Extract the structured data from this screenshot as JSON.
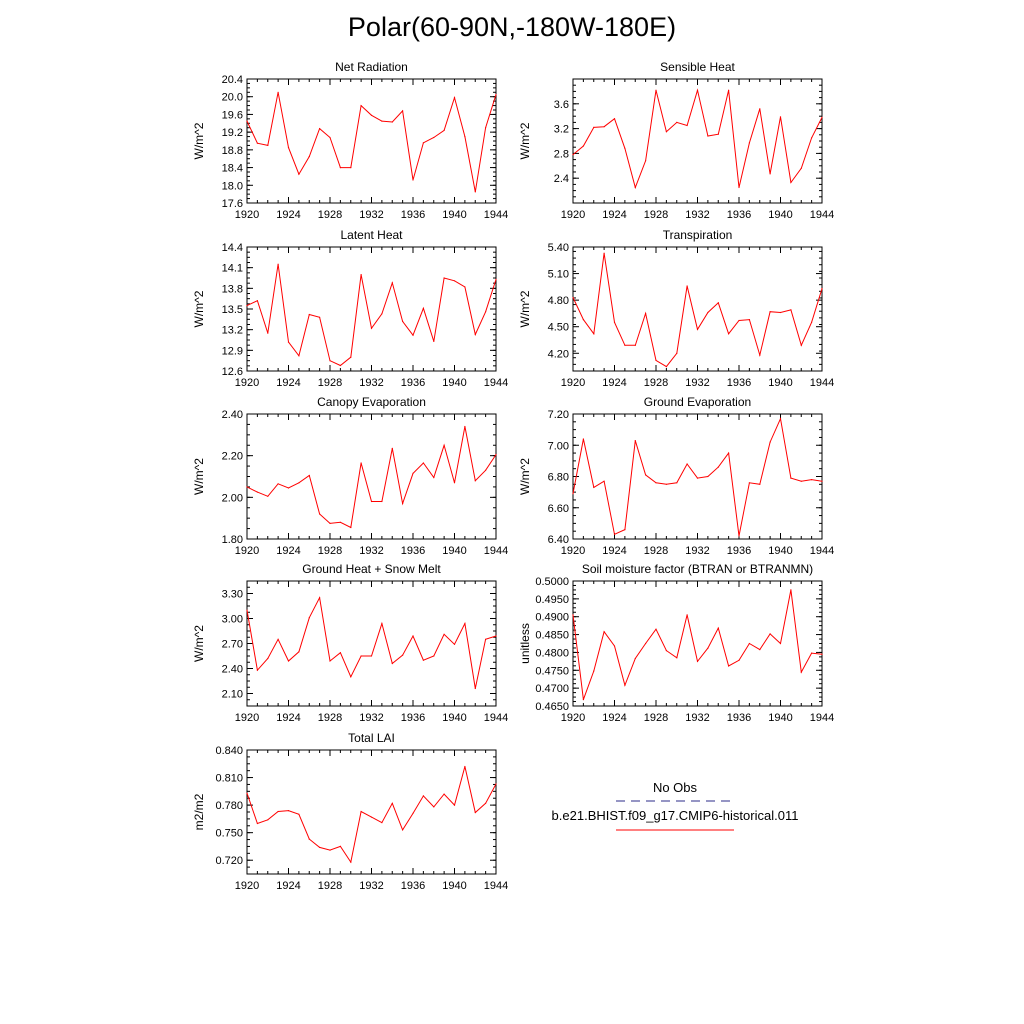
{
  "figure": {
    "title": "Polar(60-90N,-180W-180E)"
  },
  "legend": {
    "entries": [
      {
        "label": "No Obs",
        "color": "#2b2b8a",
        "style": "dashed"
      },
      {
        "label": "b.e21.BHIST.f09_g17.CMIP6-historical.011",
        "color": "#ff0000",
        "style": "solid"
      }
    ]
  },
  "chart_data": [
    {
      "type": "line",
      "title": "Net Radiation",
      "ylabel": "W/m^2",
      "xlabel": "",
      "x": [
        1920,
        1921,
        1922,
        1923,
        1924,
        1925,
        1926,
        1927,
        1928,
        1929,
        1930,
        1931,
        1932,
        1933,
        1934,
        1935,
        1936,
        1937,
        1938,
        1939,
        1940,
        1941,
        1942,
        1943,
        1944
      ],
      "xticks": [
        1920,
        1924,
        1928,
        1932,
        1936,
        1940,
        1944
      ],
      "ylim": [
        17.6,
        20.4
      ],
      "yticks": [
        "17.6",
        "18.0",
        "18.4",
        "18.8",
        "19.2",
        "19.6",
        "20.0",
        "20.4"
      ],
      "series": [
        {
          "color": "#ff0000",
          "values": [
            19.45,
            18.95,
            18.9,
            20.1,
            18.85,
            18.25,
            18.65,
            19.28,
            19.08,
            18.4,
            18.4,
            19.8,
            19.58,
            19.45,
            19.43,
            19.68,
            18.12,
            18.96,
            19.08,
            19.24,
            19.98,
            19.1,
            17.85,
            19.3,
            20.05
          ]
        }
      ]
    },
    {
      "type": "line",
      "title": "Sensible Heat",
      "ylabel": "W/m^2",
      "xlabel": "",
      "x": [
        1920,
        1921,
        1922,
        1923,
        1924,
        1925,
        1926,
        1927,
        1928,
        1929,
        1930,
        1931,
        1932,
        1933,
        1934,
        1935,
        1936,
        1937,
        1938,
        1939,
        1940,
        1941,
        1942,
        1943,
        1944
      ],
      "xticks": [
        1920,
        1924,
        1928,
        1932,
        1936,
        1940,
        1944
      ],
      "ylim": [
        2.0,
        4.0
      ],
      "yticks": [
        "2.4",
        "2.8",
        "3.2",
        "3.6"
      ],
      "series": [
        {
          "color": "#ff0000",
          "values": [
            2.78,
            2.92,
            3.22,
            3.23,
            3.36,
            2.88,
            2.25,
            2.68,
            3.82,
            3.15,
            3.3,
            3.25,
            3.82,
            3.08,
            3.11,
            3.82,
            2.25,
            2.97,
            3.52,
            2.47,
            3.39,
            2.33,
            2.56,
            3.05,
            3.38
          ]
        }
      ]
    },
    {
      "type": "line",
      "title": "Latent Heat",
      "ylabel": "W/m^2",
      "xlabel": "",
      "x": [
        1920,
        1921,
        1922,
        1923,
        1924,
        1925,
        1926,
        1927,
        1928,
        1929,
        1930,
        1931,
        1932,
        1933,
        1934,
        1935,
        1936,
        1937,
        1938,
        1939,
        1940,
        1941,
        1942,
        1943,
        1944
      ],
      "xticks": [
        1920,
        1924,
        1928,
        1932,
        1936,
        1940,
        1944
      ],
      "ylim": [
        12.6,
        14.4
      ],
      "yticks": [
        "12.6",
        "12.9",
        "13.2",
        "13.5",
        "13.8",
        "14.1",
        "14.4"
      ],
      "series": [
        {
          "color": "#ff0000",
          "values": [
            13.55,
            13.62,
            13.15,
            14.15,
            13.02,
            12.82,
            13.42,
            13.38,
            12.75,
            12.68,
            12.8,
            14.0,
            13.22,
            13.43,
            13.88,
            13.32,
            13.12,
            13.51,
            13.03,
            13.95,
            13.91,
            13.82,
            13.13,
            13.46,
            13.93
          ]
        }
      ]
    },
    {
      "type": "line",
      "title": "Transpiration",
      "ylabel": "W/m^2",
      "xlabel": "",
      "x": [
        1920,
        1921,
        1922,
        1923,
        1924,
        1925,
        1926,
        1927,
        1928,
        1929,
        1930,
        1931,
        1932,
        1933,
        1934,
        1935,
        1936,
        1937,
        1938,
        1939,
        1940,
        1941,
        1942,
        1943,
        1944
      ],
      "xticks": [
        1920,
        1924,
        1928,
        1932,
        1936,
        1940,
        1944
      ],
      "ylim": [
        4.0,
        5.4
      ],
      "yticks": [
        "4.20",
        "4.50",
        "4.80",
        "5.10",
        "5.40"
      ],
      "series": [
        {
          "color": "#ff0000",
          "values": [
            4.83,
            4.58,
            4.42,
            5.33,
            4.55,
            4.29,
            4.29,
            4.65,
            4.12,
            4.05,
            4.2,
            4.96,
            4.47,
            4.66,
            4.77,
            4.42,
            4.57,
            4.58,
            4.18,
            4.67,
            4.66,
            4.69,
            4.29,
            4.55,
            4.93
          ]
        }
      ]
    },
    {
      "type": "line",
      "title": "Canopy Evaporation",
      "ylabel": "W/m^2",
      "xlabel": "",
      "x": [
        1920,
        1921,
        1922,
        1923,
        1924,
        1925,
        1926,
        1927,
        1928,
        1929,
        1930,
        1931,
        1932,
        1933,
        1934,
        1935,
        1936,
        1937,
        1938,
        1939,
        1940,
        1941,
        1942,
        1943,
        1944
      ],
      "xticks": [
        1920,
        1924,
        1928,
        1932,
        1936,
        1940,
        1944
      ],
      "ylim": [
        1.8,
        2.4
      ],
      "yticks": [
        "1.80",
        "2.00",
        "2.20",
        "2.40"
      ],
      "series": [
        {
          "color": "#ff0000",
          "values": [
            2.05,
            2.025,
            2.005,
            2.065,
            2.045,
            2.07,
            2.105,
            1.92,
            1.875,
            1.88,
            1.855,
            2.165,
            1.98,
            1.98,
            2.235,
            1.97,
            2.115,
            2.165,
            2.095,
            2.25,
            2.07,
            2.34,
            2.08,
            2.13,
            2.205
          ]
        }
      ]
    },
    {
      "type": "line",
      "title": "Ground Evaporation",
      "ylabel": "W/m^2",
      "xlabel": "",
      "x": [
        1920,
        1921,
        1922,
        1923,
        1924,
        1925,
        1926,
        1927,
        1928,
        1929,
        1930,
        1931,
        1932,
        1933,
        1934,
        1935,
        1936,
        1937,
        1938,
        1939,
        1940,
        1941,
        1942,
        1943,
        1944
      ],
      "xticks": [
        1920,
        1924,
        1928,
        1932,
        1936,
        1940,
        1944
      ],
      "ylim": [
        6.4,
        7.2
      ],
      "yticks": [
        "6.40",
        "6.60",
        "6.80",
        "7.00",
        "7.20"
      ],
      "series": [
        {
          "color": "#ff0000",
          "values": [
            6.69,
            7.04,
            6.73,
            6.77,
            6.43,
            6.46,
            7.03,
            6.81,
            6.76,
            6.75,
            6.76,
            6.88,
            6.79,
            6.8,
            6.86,
            6.95,
            6.42,
            6.76,
            6.75,
            7.02,
            7.17,
            6.79,
            6.77,
            6.78,
            6.77
          ]
        }
      ]
    },
    {
      "type": "line",
      "title": "Ground Heat + Snow Melt",
      "ylabel": "W/m^2",
      "xlabel": "",
      "x": [
        1920,
        1921,
        1922,
        1923,
        1924,
        1925,
        1926,
        1927,
        1928,
        1929,
        1930,
        1931,
        1932,
        1933,
        1934,
        1935,
        1936,
        1937,
        1938,
        1939,
        1940,
        1941,
        1942,
        1943,
        1944
      ],
      "xticks": [
        1920,
        1924,
        1928,
        1932,
        1936,
        1940,
        1944
      ],
      "ylim": [
        1.95,
        3.45
      ],
      "yticks": [
        "2.10",
        "2.40",
        "2.70",
        "3.00",
        "3.30"
      ],
      "series": [
        {
          "color": "#ff0000",
          "values": [
            3.1,
            2.38,
            2.52,
            2.75,
            2.49,
            2.6,
            3.01,
            3.25,
            2.49,
            2.59,
            2.3,
            2.55,
            2.55,
            2.94,
            2.46,
            2.56,
            2.79,
            2.5,
            2.55,
            2.81,
            2.69,
            2.94,
            2.16,
            2.75,
            2.79
          ]
        }
      ]
    },
    {
      "type": "line",
      "title": "Soil moisture factor (BTRAN or BTRANMN)",
      "ylabel": "unitless",
      "xlabel": "",
      "x": [
        1920,
        1921,
        1922,
        1923,
        1924,
        1925,
        1926,
        1927,
        1928,
        1929,
        1930,
        1931,
        1932,
        1933,
        1934,
        1935,
        1936,
        1937,
        1938,
        1939,
        1940,
        1941,
        1942,
        1943,
        1944
      ],
      "xticks": [
        1920,
        1924,
        1928,
        1932,
        1936,
        1940,
        1944
      ],
      "ylim": [
        0.465,
        0.5
      ],
      "yticks": [
        "0.4650",
        "0.4700",
        "0.4750",
        "0.4800",
        "0.4850",
        "0.4900",
        "0.4950",
        "0.5000"
      ],
      "series": [
        {
          "color": "#ff0000",
          "values": [
            0.4905,
            0.4668,
            0.4748,
            0.4858,
            0.4818,
            0.4708,
            0.4783,
            0.4825,
            0.4865,
            0.4805,
            0.4785,
            0.4905,
            0.4775,
            0.4812,
            0.4868,
            0.4762,
            0.4778,
            0.4825,
            0.4808,
            0.4852,
            0.4825,
            0.4975,
            0.4745,
            0.4798,
            0.4795
          ]
        }
      ]
    },
    {
      "type": "line",
      "title": "Total LAI",
      "ylabel": "m2/m2",
      "xlabel": "",
      "x": [
        1920,
        1921,
        1922,
        1923,
        1924,
        1925,
        1926,
        1927,
        1928,
        1929,
        1930,
        1931,
        1932,
        1933,
        1934,
        1935,
        1936,
        1937,
        1938,
        1939,
        1940,
        1941,
        1942,
        1943,
        1944
      ],
      "xticks": [
        1920,
        1924,
        1928,
        1932,
        1936,
        1940,
        1944
      ],
      "ylim": [
        0.705,
        0.84
      ],
      "yticks": [
        "0.720",
        "0.750",
        "0.780",
        "0.810",
        "0.840"
      ],
      "series": [
        {
          "color": "#ff0000",
          "values": [
            0.793,
            0.76,
            0.764,
            0.773,
            0.774,
            0.77,
            0.743,
            0.734,
            0.731,
            0.735,
            0.718,
            0.773,
            0.767,
            0.761,
            0.782,
            0.753,
            0.771,
            0.79,
            0.778,
            0.792,
            0.78,
            0.822,
            0.772,
            0.782,
            0.803
          ]
        }
      ]
    }
  ]
}
